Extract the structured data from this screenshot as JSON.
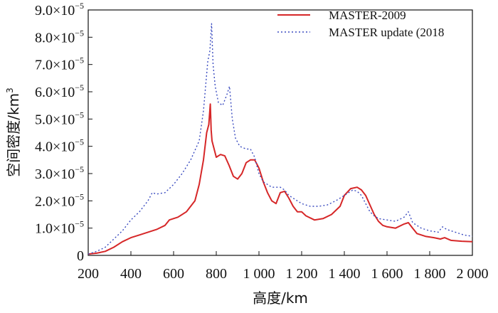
{
  "chart_data": {
    "type": "line",
    "xlabel": "高度/km",
    "ylabel": "空间密度/km",
    "ylabel_exponent": "3",
    "xlim": [
      200,
      2000
    ],
    "ylim": [
      0,
      9e-05
    ],
    "x_ticks": [
      200,
      400,
      600,
      800,
      1000,
      1200,
      1400,
      1600,
      1800,
      2000
    ],
    "x_tick_labels": [
      "200",
      "400",
      "600",
      "800",
      "1 000",
      "1 200",
      "1 400",
      "1 600",
      "1 800",
      "2 000"
    ],
    "y_ticks": [
      0,
      1e-05,
      2e-05,
      3e-05,
      4e-05,
      5e-05,
      6e-05,
      7e-05,
      8e-05,
      9e-05
    ],
    "y_tick_mantissas": [
      "0",
      "1.0",
      "2.0",
      "3.0",
      "4.0",
      "5.0",
      "6.0",
      "7.0",
      "8.0",
      "9.0"
    ],
    "y_tick_base": "×10",
    "y_tick_exponent": "−5",
    "grid": false,
    "legend_position": "top-right",
    "series": [
      {
        "name": "MASTER-2009",
        "color": "#d62728",
        "style": "solid",
        "x": [
          200,
          240,
          280,
          320,
          360,
          400,
          440,
          480,
          520,
          560,
          580,
          620,
          660,
          700,
          720,
          740,
          755,
          765,
          772,
          776,
          780,
          790,
          800,
          820,
          840,
          860,
          880,
          900,
          920,
          940,
          960,
          980,
          1000,
          1020,
          1040,
          1060,
          1080,
          1100,
          1120,
          1140,
          1160,
          1180,
          1200,
          1220,
          1260,
          1300,
          1340,
          1380,
          1400,
          1430,
          1460,
          1480,
          1500,
          1520,
          1540,
          1560,
          1580,
          1600,
          1640,
          1680,
          1700,
          1720,
          1740,
          1780,
          1820,
          1850,
          1870,
          1900,
          1950,
          2000
        ],
        "y": [
          5e-07,
          8e-07,
          1.5e-06,
          3e-06,
          5e-06,
          6.5e-06,
          7.5e-06,
          8.5e-06,
          9.5e-06,
          1.1e-05,
          1.3e-05,
          1.4e-05,
          1.6e-05,
          2e-05,
          2.6e-05,
          3.5e-05,
          4.5e-05,
          4.8e-05,
          5.55e-05,
          4.6e-05,
          4.2e-05,
          3.9e-05,
          3.6e-05,
          3.7e-05,
          3.65e-05,
          3.3e-05,
          2.9e-05,
          2.8e-05,
          3e-05,
          3.4e-05,
          3.5e-05,
          3.5e-05,
          3.2e-05,
          2.7e-05,
          2.3e-05,
          2e-05,
          1.9e-05,
          2.3e-05,
          2.35e-05,
          2.1e-05,
          1.8e-05,
          1.6e-05,
          1.6e-05,
          1.45e-05,
          1.3e-05,
          1.35e-05,
          1.5e-05,
          1.8e-05,
          2.2e-05,
          2.45e-05,
          2.5e-05,
          2.4e-05,
          2.2e-05,
          1.85e-05,
          1.5e-05,
          1.25e-05,
          1.1e-05,
          1.05e-05,
          1e-05,
          1.15e-05,
          1.2e-05,
          1e-05,
          8e-06,
          7e-06,
          6.5e-06,
          6e-06,
          6.5e-06,
          5.5e-06,
          5.2e-06,
          5e-06
        ]
      },
      {
        "name": "MASTER update (2018",
        "color": "#3b4cc0",
        "style": "dotted",
        "x": [
          200,
          240,
          280,
          320,
          360,
          400,
          440,
          480,
          500,
          520,
          560,
          600,
          640,
          680,
          720,
          740,
          760,
          770,
          778,
          785,
          795,
          810,
          830,
          850,
          862,
          875,
          890,
          910,
          940,
          960,
          980,
          1000,
          1020,
          1040,
          1060,
          1080,
          1100,
          1120,
          1140,
          1160,
          1200,
          1240,
          1280,
          1320,
          1360,
          1400,
          1440,
          1460,
          1480,
          1500,
          1520,
          1540,
          1560,
          1600,
          1640,
          1680,
          1700,
          1720,
          1760,
          1800,
          1840,
          1860,
          1880,
          1920,
          1960,
          2000
        ],
        "y": [
          5e-07,
          1.5e-06,
          3e-06,
          6e-06,
          9e-06,
          1.3e-05,
          1.6e-05,
          2e-05,
          2.3e-05,
          2.25e-05,
          2.3e-05,
          2.6e-05,
          3e-05,
          3.5e-05,
          4.2e-05,
          5.3e-05,
          7.1e-05,
          7.5e-05,
          8.5e-05,
          7e-05,
          6.2e-05,
          5.6e-05,
          5.5e-05,
          5.9e-05,
          6.2e-05,
          5e-05,
          4.3e-05,
          4e-05,
          3.9e-05,
          3.9e-05,
          3.6e-05,
          3e-05,
          2.7e-05,
          2.6e-05,
          2.5e-05,
          2.5e-05,
          2.5e-05,
          2.4e-05,
          2.2e-05,
          2.1e-05,
          1.9e-05,
          1.8e-05,
          1.8e-05,
          1.85e-05,
          2e-05,
          2.2e-05,
          2.4e-05,
          2.35e-05,
          2.2e-05,
          1.9e-05,
          1.6e-05,
          1.45e-05,
          1.35e-05,
          1.3e-05,
          1.25e-05,
          1.4e-05,
          1.6e-05,
          1.2e-05,
          1e-05,
          9e-06,
          8.5e-06,
          1.05e-05,
          9.5e-06,
          8.5e-06,
          7.5e-06,
          7e-06
        ]
      }
    ]
  }
}
